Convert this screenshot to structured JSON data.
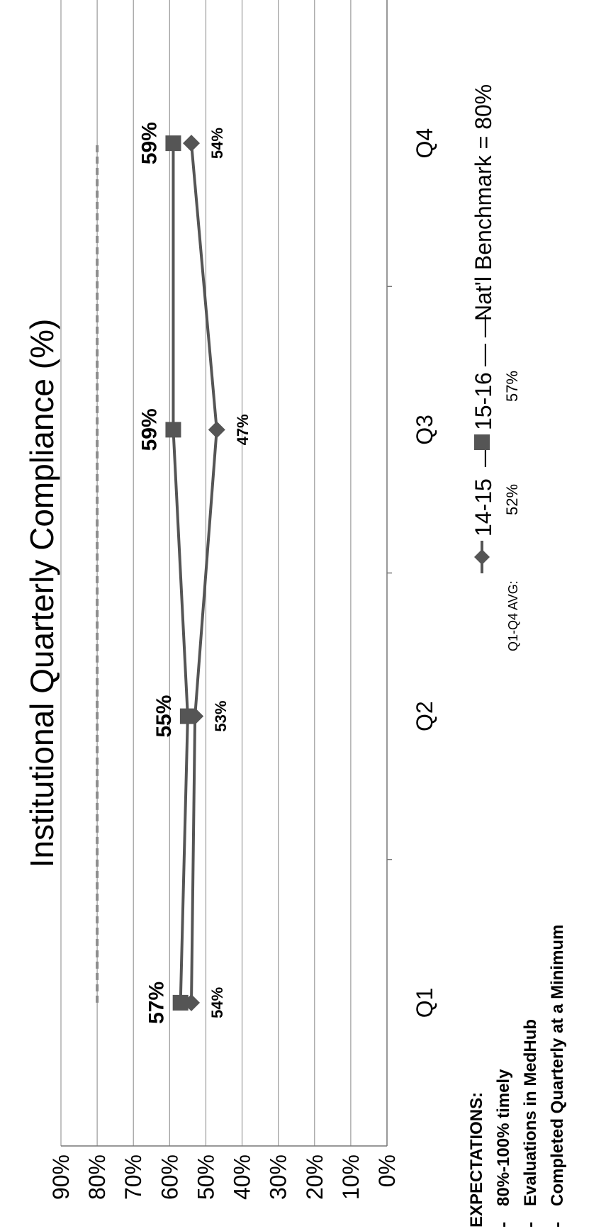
{
  "chart_data": {
    "type": "line",
    "title": "Institutional Quarterly Compliance (%)",
    "categories": [
      "Q1",
      "Q2",
      "Q3",
      "Q4"
    ],
    "y_ticks": [
      "90%",
      "80%",
      "70%",
      "60%",
      "50%",
      "40%",
      "30%",
      "20%",
      "10%",
      "0%"
    ],
    "ylim": [
      0,
      90
    ],
    "grid": true,
    "legend_position": "bottom",
    "series": [
      {
        "name": "14-15",
        "marker": "diamond",
        "color": "#555555",
        "values": [
          54,
          53,
          47,
          54
        ],
        "labels": [
          "54%",
          "53%",
          "47%",
          "54%"
        ]
      },
      {
        "name": "15-16",
        "marker": "square",
        "color": "#555555",
        "values": [
          57,
          55,
          59,
          59
        ],
        "labels": [
          "57%",
          "55%",
          "59%",
          "59%"
        ]
      },
      {
        "name": "Nat'l Benchmark = 80%",
        "marker": "none",
        "style": "dashed",
        "color": "#8c8c8c",
        "values": [
          80,
          80,
          80,
          80
        ]
      }
    ],
    "legend_separators": {
      "after_first": "—",
      "between_second_third": "— —"
    },
    "averages": {
      "label": "Q1-Q4 AVG:",
      "values": [
        "52%",
        "57%"
      ]
    }
  },
  "expectations": {
    "heading": "EXPECTATIONS:",
    "bullet": "-",
    "items": [
      "80%-100% timely",
      "Evaluations in MedHub",
      "Completed Quarterly at a Minimum"
    ]
  }
}
